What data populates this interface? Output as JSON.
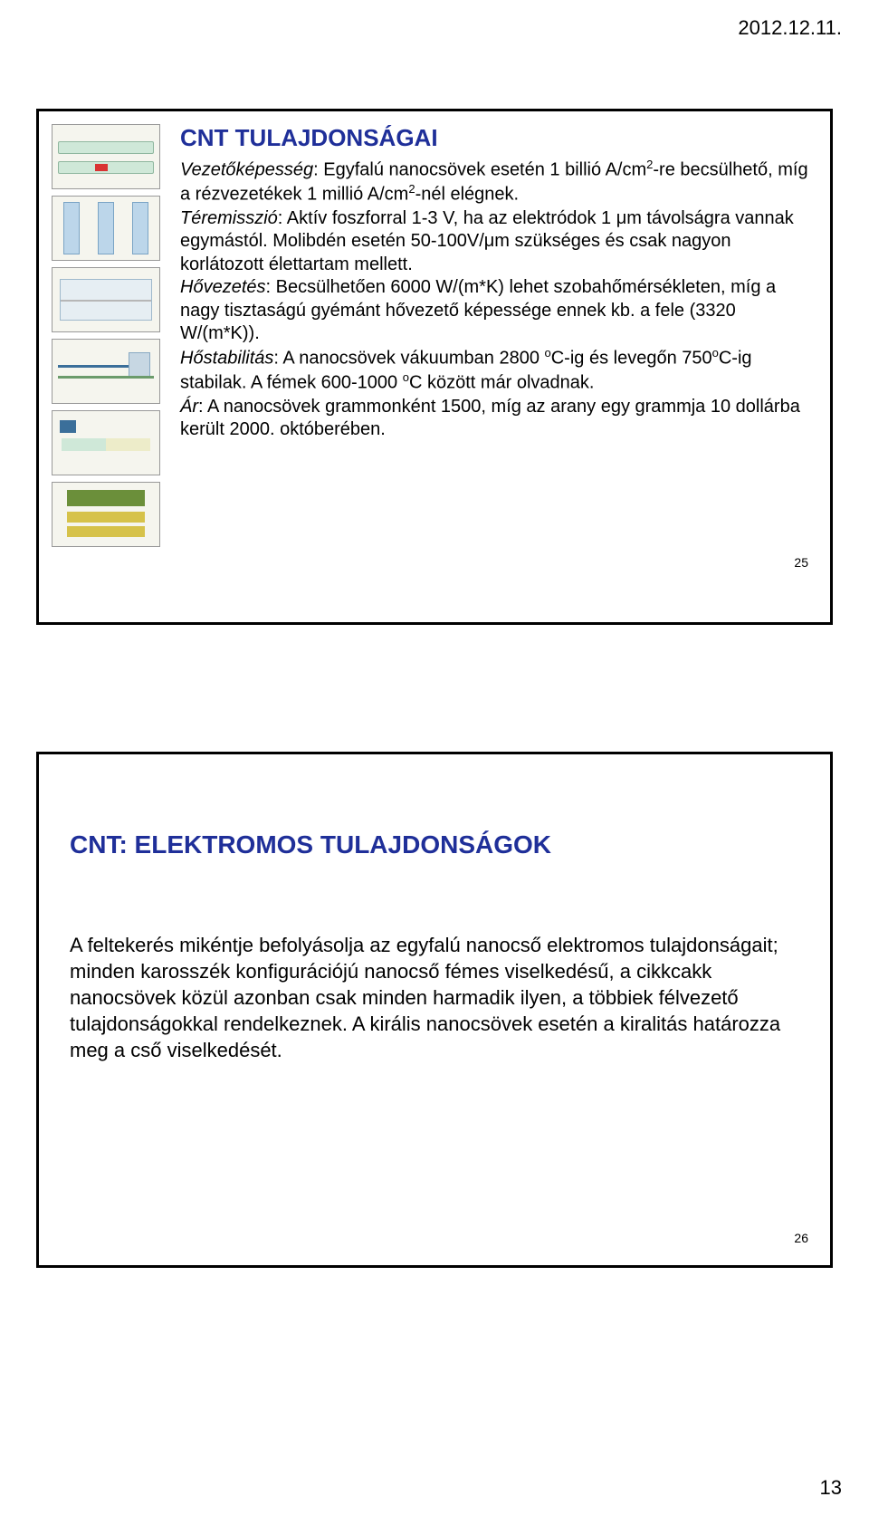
{
  "meta": {
    "date": "2012.12.11.",
    "page_number": "13"
  },
  "slide1": {
    "title": "CNT TULAJDONSÁGAI",
    "page_num": "25",
    "p1_label": "Vezetőképesség",
    "p1_rest": ": Egyfalú nanocsövek esetén 1 billió A/cm",
    "p1_sup1": "2",
    "p1_mid": "-re becsülhető, míg a rézvezetékek 1 millió A/cm",
    "p1_sup2": "2",
    "p1_end": "-nél elégnek.",
    "p2_label": "Téremisszió",
    "p2_rest": ": Aktív foszforral 1-3 V, ha az elektródok 1 μm távolságra vannak egymástól. Molibdén esetén 50-100V/μm szükséges és csak nagyon korlátozott élettartam mellett.",
    "p3_label": "Hővezetés",
    "p3_rest": ": Becsülhetően 6000 W/(m*K) lehet szobahőmérsékleten, míg a nagy tisztaságú gyémánt hővezető képessége ennek kb. a fele (3320 W/(m*K)).",
    "p4_label": "Hőstabilitás",
    "p4_rest": ": A nanocsövek vákuumban 2800 ",
    "p4_sup1": "o",
    "p4_mid1": "C-ig és levegőn 750",
    "p4_sup2": "o",
    "p4_mid2": "C-ig stabilak. A fémek 600-1000 ",
    "p4_sup3": "o",
    "p4_end": "C között már olvadnak.",
    "p5_label": "Ár",
    "p5_rest": ": A nanocsövek grammonként 1500, míg az arany egy grammja 10 dollárba került 2000. októberében."
  },
  "slide2": {
    "title": "CNT: ELEKTROMOS TULAJDONSÁGOK",
    "body": "A feltekerés mikéntje befolyásolja az egyfalú nanocső elektromos tulajdonságait; minden karosszék konfigurációjú nanocső fémes viselkedésű, a cikkcakk nanocsövek közül azonban csak minden harmadik ilyen, a többiek félvezető tulajdonságokkal rendelkeznek. A királis nanocsövek esetén a kiralitás határozza meg a cső viselkedését.",
    "page_num": "26"
  }
}
